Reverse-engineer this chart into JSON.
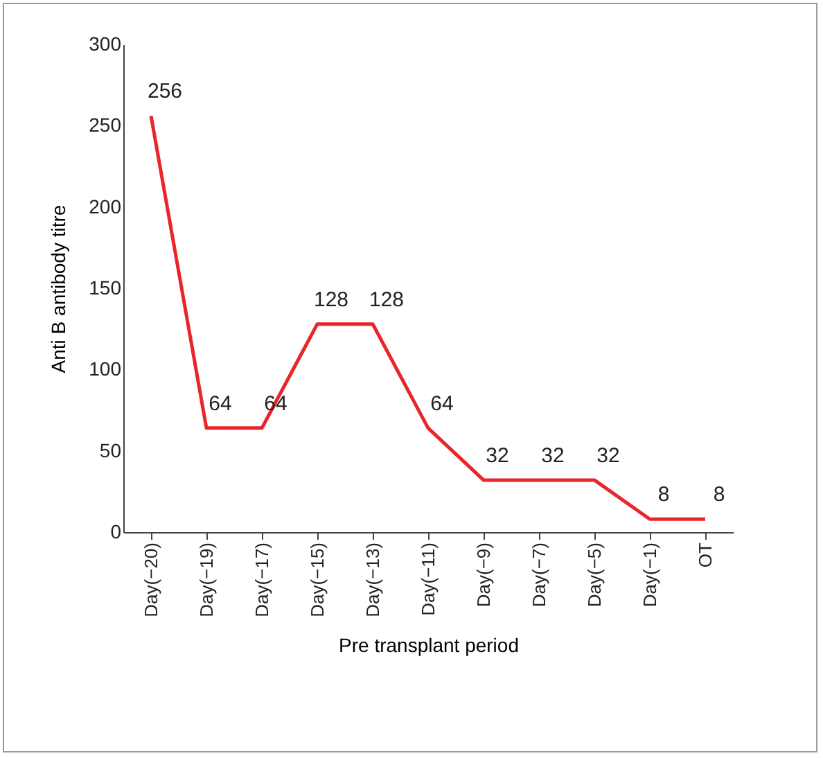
{
  "chart_data": {
    "type": "line",
    "xlabel": "Pre transplant period",
    "ylabel": "Anti B antibody titre",
    "categories": [
      "Day(−20)",
      "Day(−19)",
      "Day(−17)",
      "Day(−15)",
      "Day(−13)",
      "Day(−11)",
      "Day(−9)",
      "Day(−7)",
      "Day(−5)",
      "Day(−1)",
      "OT"
    ],
    "series": [
      {
        "color": "#e8262a",
        "values": [
          256,
          64,
          64,
          128,
          128,
          64,
          32,
          32,
          32,
          8,
          8
        ]
      }
    ],
    "ylim": [
      0,
      300
    ],
    "yticks": [
      0,
      50,
      100,
      150,
      200,
      250,
      300
    ],
    "data_labels": true,
    "grid": false,
    "legend": false
  }
}
